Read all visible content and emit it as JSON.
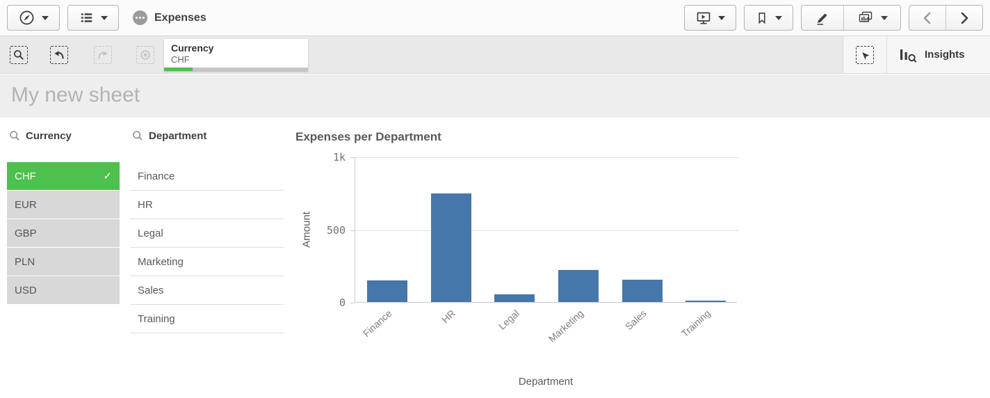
{
  "app_toolbar": {
    "title": "Expenses"
  },
  "selections_bar": {
    "selection": {
      "field": "Currency",
      "value": "CHF",
      "selected_ratio": 0.2
    },
    "insights_label": "Insights"
  },
  "sheet": {
    "title": "My new sheet"
  },
  "filter_panes": [
    {
      "title": "Currency",
      "items": [
        {
          "label": "CHF",
          "state": "selected"
        },
        {
          "label": "EUR",
          "state": "alternative"
        },
        {
          "label": "GBP",
          "state": "alternative"
        },
        {
          "label": "PLN",
          "state": "alternative"
        },
        {
          "label": "USD",
          "state": "alternative"
        }
      ]
    },
    {
      "title": "Department",
      "items": [
        {
          "label": "Finance",
          "state": "possible"
        },
        {
          "label": "HR",
          "state": "possible"
        },
        {
          "label": "Legal",
          "state": "possible"
        },
        {
          "label": "Marketing",
          "state": "possible"
        },
        {
          "label": "Sales",
          "state": "possible"
        },
        {
          "label": "Training",
          "state": "possible"
        }
      ]
    }
  ],
  "chart_data": {
    "type": "bar",
    "title": "Expenses per Department",
    "categories": [
      "Finance",
      "HR",
      "Legal",
      "Marketing",
      "Sales",
      "Training"
    ],
    "values": [
      150,
      745,
      55,
      220,
      155,
      10
    ],
    "xlabel": "Department",
    "ylabel": "Amount",
    "ylim": [
      0,
      1000
    ],
    "yticks": [
      "0",
      "500",
      "1k"
    ],
    "grid": true,
    "legend": false,
    "bar_color": "#4677aa"
  },
  "icons": {
    "navigation_menu": "compass-icon",
    "app_navigation": "list-icon",
    "app_options": "ellipsis-icon",
    "storytelling": "presentation-play-icon",
    "bookmarks": "bookmark-icon",
    "edit_sheet": "pencil-icon",
    "sheets": "charts-stack-icon",
    "previous_sheet": "chevron-left-icon",
    "next_sheet": "chevron-right-icon",
    "smart_search": "search-selection-icon",
    "undo_selection": "undo-selection-icon",
    "redo_selection": "redo-selection-icon",
    "clear_selections": "clear-selections-icon",
    "selections_tool": "selections-tool-icon",
    "insight_advisor": "insights-logo-icon",
    "filter_search": "magnifier-icon",
    "check_glyph": "✓"
  },
  "colors": {
    "selected_green": "#4ec04e",
    "alternative_gray": "#d8d8d8",
    "bar_blue": "#4677aa"
  }
}
